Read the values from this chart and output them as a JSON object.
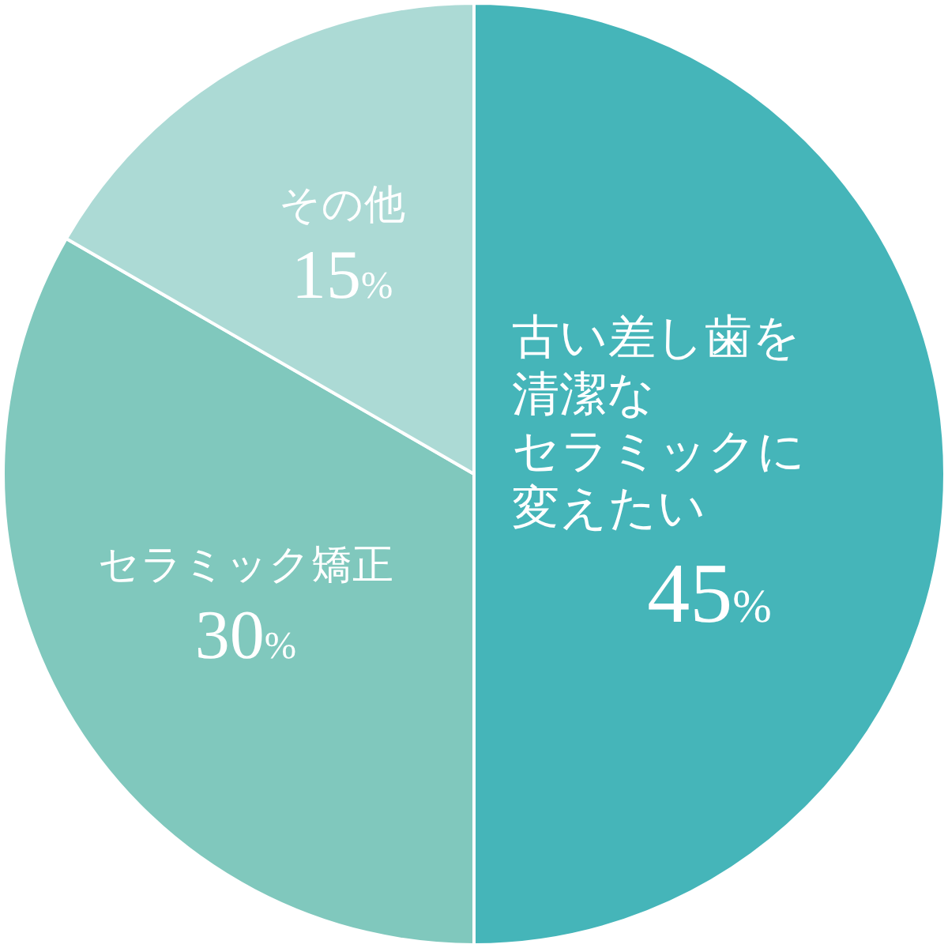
{
  "chart_data": {
    "type": "pie",
    "categories": [
      "古い差し歯を清潔なセラミックに変えたい",
      "セラミック矯正",
      "その他"
    ],
    "values": [
      45,
      30,
      15
    ],
    "colors": [
      "#45b5b9",
      "#80c8bd",
      "#acdad5"
    ],
    "value_labels": [
      "45%",
      "30%",
      "15%"
    ]
  }
}
